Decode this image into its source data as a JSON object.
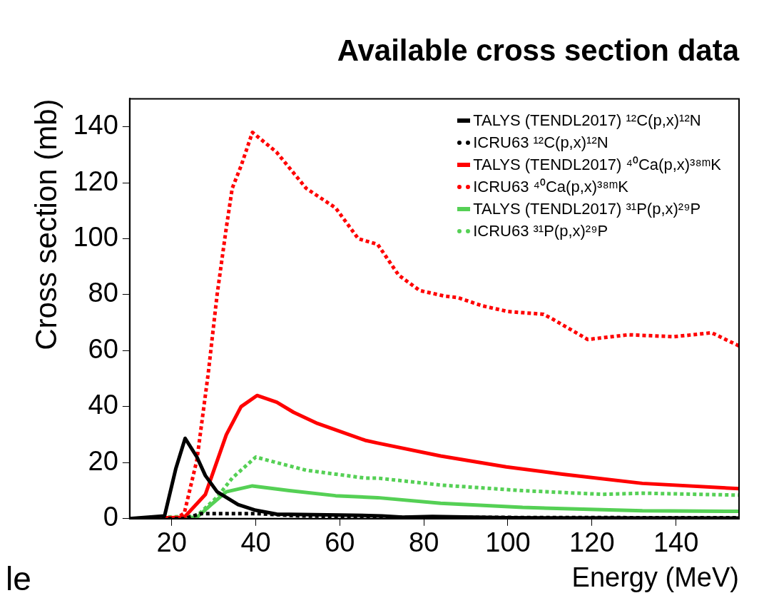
{
  "chart_data": {
    "type": "line",
    "title": "Available cross section data",
    "xlabel": "Energy (MeV)",
    "ylabel": "Cross section (mb)",
    "xlim": [
      10,
      155
    ],
    "xticks": [
      20,
      40,
      60,
      80,
      100,
      120,
      140
    ],
    "ylim": [
      0,
      150
    ],
    "yticks": [
      0,
      20,
      40,
      60,
      80,
      100,
      120,
      140
    ],
    "grid": false,
    "legend": "top right",
    "marker": "none",
    "annotations": [
      "le"
    ],
    "series": [
      {
        "name": "TALYS (TENDL2017) ¹²C(p,x)¹²N",
        "color": "#000000",
        "line_style": "solid",
        "x": [
          10,
          18.3,
          21,
          23.2,
          26,
          28,
          30.8,
          35.8,
          40,
          45,
          60,
          70,
          75,
          82,
          100,
          155
        ],
        "values": [
          0,
          1,
          18,
          28.7,
          22,
          15.4,
          9.6,
          5,
          3,
          1.6,
          1.3,
          1,
          0.5,
          0.8,
          0.3,
          0.2
        ]
      },
      {
        "name": "ICRU63 ¹²C(p,x)¹²N",
        "color": "#000000",
        "line_style": "dotted",
        "x": [
          10,
          23,
          27,
          40,
          50,
          70,
          155
        ],
        "values": [
          0,
          0,
          1.8,
          1.8,
          1,
          0.5,
          0.3
        ]
      },
      {
        "name": "TALYS (TENDL2017) ⁴⁰Ca(p,x)³⁸ᵐK",
        "color": "#ff0000",
        "line_style": "solid",
        "x": [
          10,
          23,
          28,
          33,
          36.5,
          40.3,
          45,
          49,
          54.7,
          66,
          69,
          84,
          99.6,
          113,
          132,
          155
        ],
        "values": [
          0,
          0.5,
          8.6,
          30,
          40,
          44,
          41.6,
          38,
          34,
          28,
          27,
          22.4,
          18.5,
          15.9,
          12.6,
          10.7
        ]
      },
      {
        "name": "ICRU63 ⁴⁰Ca(p,x)³⁸ᵐK",
        "color": "#ff0000",
        "line_style": "dotted",
        "x": [
          10,
          21,
          23,
          26,
          28.7,
          30.8,
          33,
          34.4,
          36.5,
          39.2,
          44.9,
          52,
          59,
          64.4,
          69,
          74,
          79,
          85,
          88,
          94,
          100,
          108.5,
          111,
          119,
          128.7,
          139.5,
          148.5,
          155
        ],
        "values": [
          0,
          0,
          2,
          21,
          52,
          80,
          104,
          118,
          126,
          138,
          131,
          118,
          111,
          100,
          98,
          87,
          81.5,
          79.5,
          79,
          76,
          74,
          73,
          71,
          64,
          65.7,
          65,
          66.4,
          61.7
        ]
      },
      {
        "name": "TALYS (TENDL2017) ³¹P(p,x)²⁹P",
        "color": "#55d055",
        "line_style": "solid",
        "x": [
          10,
          26,
          29.4,
          33,
          39.2,
          48,
          59,
          69,
          84,
          103.5,
          132,
          155
        ],
        "values": [
          0,
          0.5,
          5,
          9.6,
          11.7,
          10,
          8.2,
          7.5,
          5.5,
          4,
          2.8,
          2.6
        ]
      },
      {
        "name": "ICRU63 ³¹P(p,x)²⁹P",
        "color": "#55d055",
        "line_style": "dotted",
        "x": [
          10,
          26,
          30.8,
          34.4,
          40,
          45,
          52,
          66,
          69,
          84,
          103.5,
          122.5,
          132,
          155
        ],
        "values": [
          0,
          1,
          7.7,
          14.5,
          22,
          20,
          17.3,
          14.5,
          14.5,
          12,
          10,
          8.7,
          9.1,
          8.4
        ]
      }
    ]
  }
}
